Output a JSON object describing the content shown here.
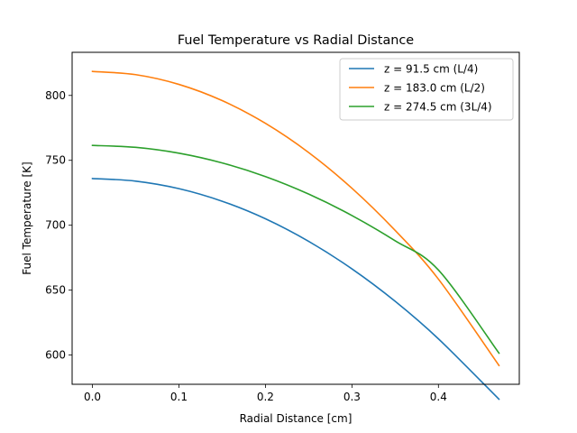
{
  "chart_data": {
    "type": "line",
    "title": "Fuel Temperature vs Radial Distance",
    "xlabel": "Radial Distance [cm]",
    "ylabel": "Fuel Temperature [K]",
    "xlim": [
      -0.0235,
      0.4935
    ],
    "ylim": [
      577.5,
      833.2
    ],
    "xticks": [
      0.0,
      0.1,
      0.2,
      0.3,
      0.4
    ],
    "xtick_labels": [
      "0.0",
      "0.1",
      "0.2",
      "0.3",
      "0.4"
    ],
    "yticks": [
      600,
      650,
      700,
      750,
      800
    ],
    "ytick_labels": [
      "600",
      "650",
      "700",
      "750",
      "800"
    ],
    "legend_position": "top-right",
    "grid": false,
    "series": [
      {
        "name": "z = 91.5 cm (L/4)",
        "color": "#1f77b4",
        "x": [
          0.0,
          0.05,
          0.1,
          0.15,
          0.2,
          0.25,
          0.3,
          0.35,
          0.4,
          0.47
        ],
        "y": [
          736.0,
          734.0,
          728.2,
          718.5,
          705.0,
          687.6,
          666.4,
          641.4,
          612.5,
          566.0
        ]
      },
      {
        "name": "z = 183.0 cm (L/2)",
        "color": "#ff7f0e",
        "x": [
          0.0,
          0.05,
          0.1,
          0.15,
          0.2,
          0.25,
          0.3,
          0.35,
          0.4,
          0.47
        ],
        "y": [
          818.5,
          816.0,
          808.5,
          796.0,
          778.5,
          756.0,
          728.5,
          696.0,
          658.5,
          592.0
        ]
      },
      {
        "name": "z = 274.5 cm (3L/4)",
        "color": "#2ca02c",
        "x": [
          0.0,
          0.05,
          0.1,
          0.15,
          0.2,
          0.25,
          0.3,
          0.35,
          0.4,
          0.47
        ],
        "y": [
          761.5,
          760.0,
          755.5,
          748.0,
          737.5,
          724.0,
          707.5,
          688.0,
          665.5,
          601.5
        ]
      }
    ]
  }
}
